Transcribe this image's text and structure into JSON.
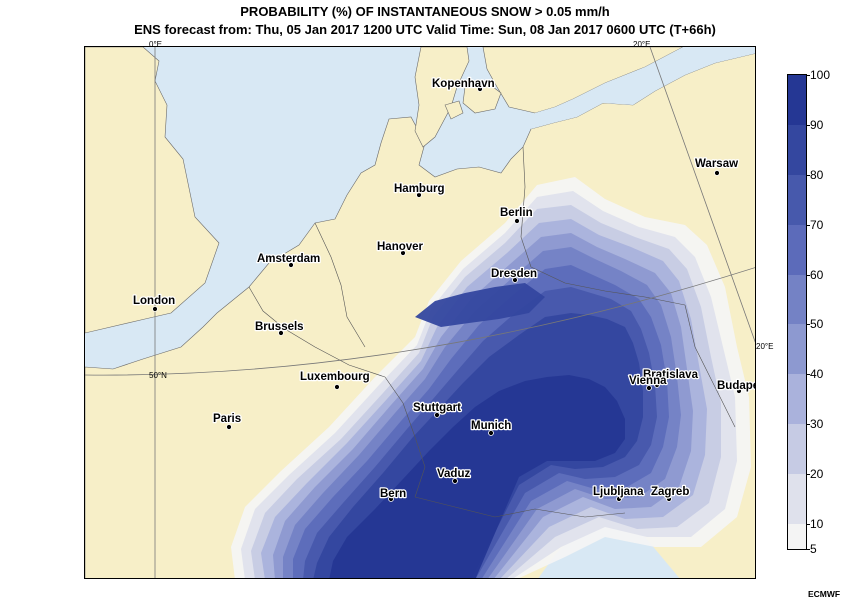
{
  "header": {
    "title": "PROBABILITY (%) OF INSTANTANEOUS SNOW > 0.05 mm/h",
    "subtitle": "ENS forecast from: Thu, 05 Jan 2017 1200 UTC   Valid Time: Sun, 08 Jan 2017 0600 UTC (T+66h)"
  },
  "colors": {
    "sea": "#d8e8f4",
    "land": "#f7efc8",
    "scale": [
      "#f4f4f4",
      "#dfe1ec",
      "#c6cbe4",
      "#aab2dc",
      "#8d99d0",
      "#7482c5",
      "#5c6bba",
      "#4759ac",
      "#34479f",
      "#253794"
    ]
  },
  "gridlines": {
    "lon_0": "0°E",
    "lon_20": "20°E",
    "lat_50": "50°N"
  },
  "cities": [
    {
      "name": "Kopenhavn"
    },
    {
      "name": "Warsaw"
    },
    {
      "name": "Hamburg"
    },
    {
      "name": "Berlin"
    },
    {
      "name": "Hanover"
    },
    {
      "name": "Amsterdam"
    },
    {
      "name": "Dresden"
    },
    {
      "name": "London"
    },
    {
      "name": "Brussels"
    },
    {
      "name": "Luxembourg"
    },
    {
      "name": "Bratislava"
    },
    {
      "name": "Vienna"
    },
    {
      "name": "Budapest"
    },
    {
      "name": "Paris"
    },
    {
      "name": "Stuttgart"
    },
    {
      "name": "Munich"
    },
    {
      "name": "Vaduz"
    },
    {
      "name": "Bern"
    },
    {
      "name": "Ljubljana"
    },
    {
      "name": "Zagreb"
    }
  ],
  "legend": {
    "ticks": [
      "100",
      "90",
      "80",
      "70",
      "60",
      "50",
      "40",
      "30",
      "20",
      "10",
      "5"
    ]
  },
  "credit": "ECMWF"
}
